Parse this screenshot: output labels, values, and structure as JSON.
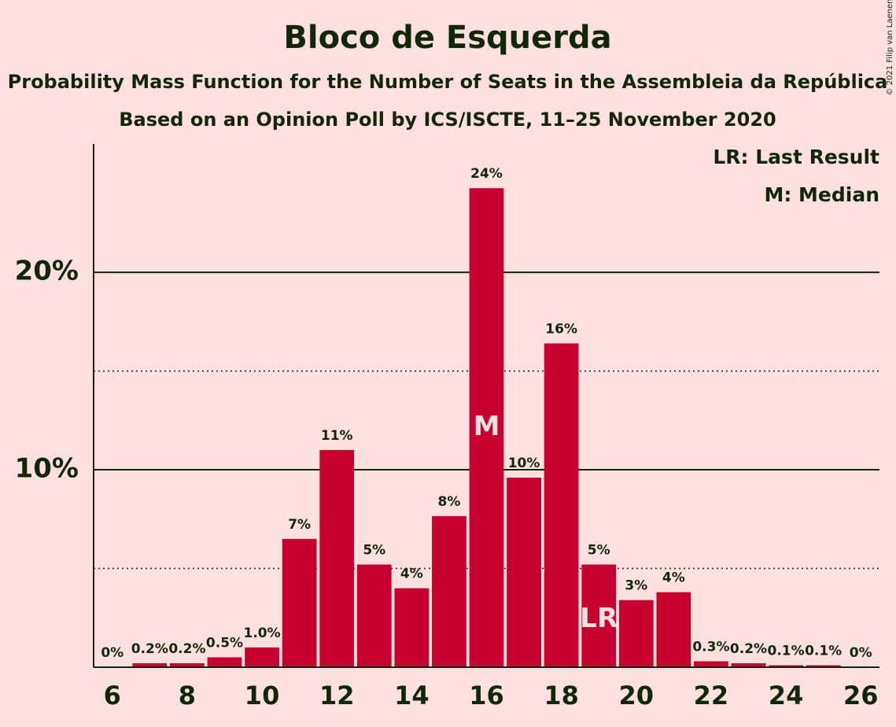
{
  "chart_data": {
    "type": "bar",
    "title": "Bloco de Esquerda",
    "subtitle": "Probability Mass Function for the Number of Seats in the Assembleia da República",
    "subtitle2": "Based on an Opinion Poll by ICS/ISCTE, 11–25 November 2020",
    "copyright": "© 2021 Filip van Laenen",
    "legend": [
      "LR: Last Result",
      "M: Median"
    ],
    "legend_position": "top-right",
    "x": [
      6,
      7,
      8,
      9,
      10,
      11,
      12,
      13,
      14,
      15,
      16,
      17,
      18,
      19,
      20,
      21,
      22,
      23,
      24,
      25,
      26
    ],
    "values": [
      0,
      0.2,
      0.2,
      0.5,
      1.0,
      6.5,
      11.0,
      5.2,
      4.0,
      7.65,
      24.26,
      9.6,
      16.4,
      5.2,
      3.4,
      3.8,
      0.3,
      0.2,
      0.1,
      0.1,
      0
    ],
    "value_labels": [
      "0%",
      "0.2%",
      "0.2%",
      "0.5%",
      "1.0%",
      "7%",
      "11%",
      "5%",
      "4%",
      "8%",
      "24%",
      "10%",
      "16%",
      "5%",
      "3%",
      "4%",
      "0.3%",
      "0.2%",
      "0.1%",
      "0.1%",
      "0%"
    ],
    "color": "#c8002f",
    "median": 16,
    "median_label": "M",
    "last_result": 19,
    "last_result_label": "LR",
    "xlim": [
      5.5,
      26.5
    ],
    "xticks": [
      6,
      8,
      10,
      12,
      14,
      16,
      18,
      20,
      22,
      24,
      26
    ],
    "ylim": [
      0,
      26.5
    ],
    "yticks": [
      {
        "value": 10,
        "label": "10%"
      },
      {
        "value": 20,
        "label": "20%"
      }
    ],
    "minor_yticks": [
      5,
      15
    ],
    "grid": true
  }
}
